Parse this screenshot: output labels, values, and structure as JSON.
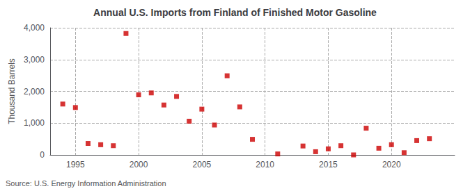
{
  "chart_data": {
    "type": "scatter",
    "title": "Annual U.S. Imports from Finland of Finished Motor Gasoline",
    "ylabel": "Thousand Barrels",
    "annotation": "Source: U.S. Energy Information Administration",
    "x": [
      1994,
      1995,
      1996,
      1997,
      1998,
      1999,
      2000,
      2001,
      2002,
      2003,
      2004,
      2005,
      2006,
      2007,
      2008,
      2009,
      2011,
      2013,
      2014,
      2015,
      2016,
      2017,
      2018,
      2019,
      2020,
      2021,
      2022,
      2023
    ],
    "values": [
      1600,
      1490,
      360,
      320,
      290,
      3820,
      1890,
      1950,
      1570,
      1840,
      1060,
      1440,
      940,
      2490,
      1510,
      490,
      30,
      280,
      100,
      190,
      290,
      0,
      840,
      210,
      320,
      70,
      450,
      510
    ],
    "color": "#cc0000",
    "marker": "square",
    "xlim": [
      1993,
      2025
    ],
    "xticks": [
      1995,
      2000,
      2005,
      2010,
      2015,
      2020
    ],
    "ylim": [
      0,
      4000
    ],
    "yticks": [
      0,
      {
        "value": 1000,
        "label": "1,000"
      },
      {
        "value": 2000,
        "label": "2,000"
      },
      {
        "value": 3000,
        "label": "3,000"
      },
      {
        "value": 4000,
        "label": "4,000"
      }
    ],
    "grid": true
  }
}
